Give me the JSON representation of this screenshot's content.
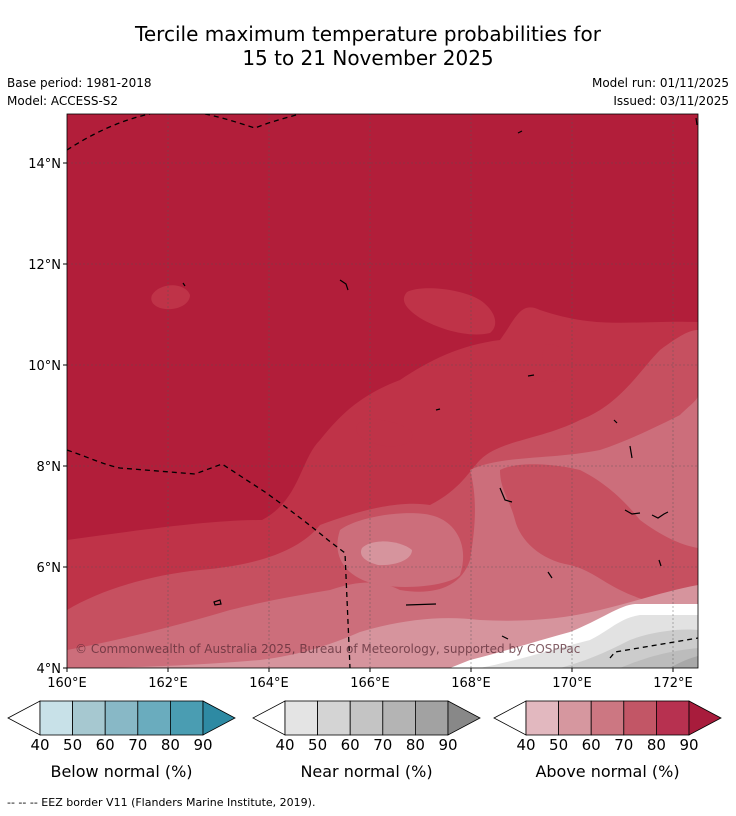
{
  "title_line1": "Tercile maximum temperature probabilities for",
  "title_line2": "15 to 21 November 2025",
  "base_period": "Base period: 1981-2018",
  "model": "Model: ACCESS-S2",
  "model_run": "Model run: 01/11/2025",
  "issued": "Issued: 03/11/2025",
  "copyright": "© Commonwealth of Australia 2025, Bureau of Meteorology, supported by COSPPac",
  "lat_labels": [
    "14°N",
    "12°N",
    "10°N",
    "8°N",
    "6°N",
    "4°N"
  ],
  "lon_labels": [
    "160°E",
    "162°E",
    "164°E",
    "166°E",
    "168°E",
    "170°E",
    "172°E"
  ],
  "colorbars": [
    {
      "label": "Below normal (%)",
      "ticks": [
        "40",
        "50",
        "60",
        "70",
        "80",
        "90"
      ],
      "colors": [
        "#ffffff",
        "#c8e1e8",
        "#a6c8d0",
        "#88b8c6",
        "#6aacbe",
        "#4a9db2",
        "#2e8aa3"
      ]
    },
    {
      "label": "Near normal (%)",
      "ticks": [
        "40",
        "50",
        "60",
        "70",
        "80",
        "90"
      ],
      "colors": [
        "#ffffff",
        "#e4e4e4",
        "#d4d4d4",
        "#c4c4c4",
        "#b4b4b4",
        "#a2a2a2",
        "#888888"
      ]
    },
    {
      "label": "Above normal (%)",
      "ticks": [
        "40",
        "50",
        "60",
        "70",
        "80",
        "90"
      ],
      "colors": [
        "#ffffff",
        "#e2b8bf",
        "#d6979f",
        "#cc7782",
        "#c25666",
        "#b73150",
        "#a81c3c"
      ]
    }
  ],
  "footer": "--  --  -- EEZ border V11 (Flanders Marine Institute, 2019).",
  "colors": {
    "above_90": "#b21e3a",
    "above_80": "#bf3348",
    "above_70": "#c65060",
    "above_60": "#cc6e7b",
    "above_50": "#d6949d",
    "near_40": "#e2e2e2",
    "near_50": "#cccccc",
    "near_60": "#bcbcbc",
    "near_70": "#a8a8a8"
  }
}
